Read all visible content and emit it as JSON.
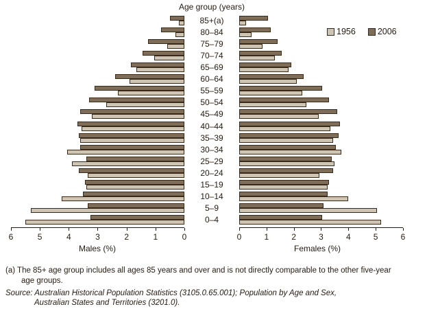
{
  "title": "Age group (years)",
  "legend": {
    "items": [
      {
        "label": "1956",
        "color": "#cdc4b4"
      },
      {
        "label": "2006",
        "color": "#7d6d59"
      }
    ]
  },
  "axes": {
    "male_label": "Males (%)",
    "female_label": "Females (%)",
    "ticks": [
      0,
      1,
      2,
      3,
      4,
      5,
      6
    ]
  },
  "footnotes": {
    "note_line1": "(a) The 85+ age group includes all ages 85 years and over and is not directly comparable to the other five-year",
    "note_line2": "age groups.",
    "source_line1": "Source: Australian Historical Population Statistics (3105.0.65.001); Population by Age and Sex,",
    "source_line2": "Australian States and Territories (3201.0)."
  },
  "colors": {
    "bar_1956": "#cdc4b4",
    "bar_2006": "#7d6d59",
    "bar_border": "#3a2817",
    "axis": "#221910",
    "text": "#241a10"
  },
  "chart_data": {
    "type": "bar",
    "subtype": "population-pyramid",
    "title": "Age group (years)",
    "xlabel_left": "Males (%)",
    "xlabel_right": "Females (%)",
    "xlim": [
      0,
      6
    ],
    "grid": false,
    "legend_position": "top-right",
    "categories_top_to_bottom": [
      "85+(a)",
      "80–84",
      "75–79",
      "70–74",
      "65–69",
      "60–64",
      "55–59",
      "50–54",
      "45–49",
      "40–44",
      "35–39",
      "30–34",
      "25–29",
      "20–24",
      "15–19",
      "10–14",
      "5–9",
      "0–4"
    ],
    "male_series": [
      {
        "name": "1956",
        "values": [
          0.2,
          0.3,
          0.6,
          1.05,
          1.65,
          1.9,
          2.3,
          2.7,
          3.2,
          3.55,
          3.6,
          4.05,
          3.9,
          3.35,
          3.4,
          4.25,
          5.3,
          5.5
        ]
      },
      {
        "name": "2006",
        "values": [
          0.5,
          0.8,
          1.25,
          1.45,
          1.85,
          2.4,
          3.1,
          3.3,
          3.6,
          3.7,
          3.65,
          3.6,
          3.4,
          3.65,
          3.45,
          3.5,
          3.35,
          3.25
        ]
      }
    ],
    "female_series": [
      {
        "name": "1956",
        "values": [
          0.25,
          0.45,
          0.85,
          1.3,
          1.8,
          2.1,
          2.3,
          2.45,
          2.9,
          3.35,
          3.45,
          3.75,
          3.5,
          2.95,
          3.25,
          4.0,
          5.05,
          5.2
        ]
      },
      {
        "name": "2006",
        "values": [
          1.05,
          1.15,
          1.4,
          1.55,
          1.9,
          2.35,
          3.05,
          3.3,
          3.6,
          3.7,
          3.65,
          3.55,
          3.4,
          3.45,
          3.3,
          3.25,
          3.1,
          3.05
        ]
      }
    ]
  }
}
